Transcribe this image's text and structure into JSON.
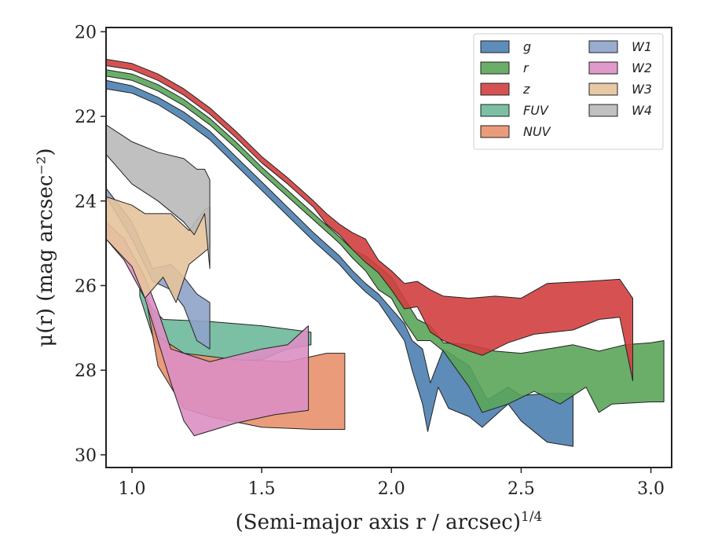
{
  "chart_data": {
    "type": "area",
    "xlabel": "(Semi-major axis r / arcsec)",
    "xlabel_sup": "1/4",
    "ylabel": "μ(r) (mag arcsec⁻²)",
    "xlim": [
      0.9,
      3.08
    ],
    "ylim": [
      30.3,
      19.9
    ],
    "y_inverted": true,
    "xticks": [
      1.0,
      1.5,
      2.0,
      2.5,
      3.0
    ],
    "xtick_labels": [
      "1.0",
      "1.5",
      "2.0",
      "2.5",
      "3.0"
    ],
    "yticks": [
      20,
      22,
      24,
      26,
      28,
      30
    ],
    "ytick_labels": [
      "20",
      "22",
      "24",
      "26",
      "28",
      "30"
    ],
    "grid": false,
    "legend_position": "top-right",
    "legend_columns": 2,
    "series": [
      {
        "name": "g",
        "color": "#4c7fb0",
        "upper": [
          [
            0.9,
            21.15
          ],
          [
            1.0,
            21.28
          ],
          [
            1.1,
            21.55
          ],
          [
            1.2,
            21.9
          ],
          [
            1.3,
            22.35
          ],
          [
            1.4,
            22.95
          ],
          [
            1.5,
            23.55
          ],
          [
            1.6,
            24.15
          ],
          [
            1.7,
            24.75
          ],
          [
            1.8,
            25.3
          ],
          [
            1.85,
            25.65
          ],
          [
            1.9,
            25.95
          ],
          [
            1.95,
            26.2
          ],
          [
            2.0,
            26.55
          ],
          [
            2.05,
            26.9
          ],
          [
            2.08,
            27.3
          ],
          [
            2.12,
            27.5
          ],
          [
            2.15,
            28.3
          ],
          [
            2.2,
            27.5
          ],
          [
            2.3,
            27.9
          ],
          [
            2.37,
            28.7
          ],
          [
            2.45,
            28.4
          ],
          [
            2.5,
            28.6
          ],
          [
            2.6,
            28.55
          ],
          [
            2.7,
            28.55
          ]
        ],
        "lower": [
          [
            0.9,
            21.35
          ],
          [
            1.0,
            21.45
          ],
          [
            1.1,
            21.72
          ],
          [
            1.2,
            22.1
          ],
          [
            1.3,
            22.55
          ],
          [
            1.4,
            23.15
          ],
          [
            1.5,
            23.75
          ],
          [
            1.6,
            24.35
          ],
          [
            1.7,
            24.95
          ],
          [
            1.8,
            25.5
          ],
          [
            1.85,
            25.85
          ],
          [
            1.9,
            26.15
          ],
          [
            1.95,
            26.4
          ],
          [
            2.0,
            26.85
          ],
          [
            2.05,
            27.3
          ],
          [
            2.08,
            28.0
          ],
          [
            2.12,
            28.8
          ],
          [
            2.14,
            29.45
          ],
          [
            2.18,
            28.4
          ],
          [
            2.22,
            28.9
          ],
          [
            2.3,
            29.1
          ],
          [
            2.35,
            29.35
          ],
          [
            2.45,
            28.8
          ],
          [
            2.5,
            29.2
          ],
          [
            2.6,
            29.7
          ],
          [
            2.7,
            29.8
          ]
        ]
      },
      {
        "name": "r",
        "color": "#5aa55a",
        "upper": [
          [
            0.9,
            20.9
          ],
          [
            1.0,
            21.0
          ],
          [
            1.1,
            21.25
          ],
          [
            1.2,
            21.6
          ],
          [
            1.3,
            22.05
          ],
          [
            1.4,
            22.6
          ],
          [
            1.5,
            23.2
          ],
          [
            1.6,
            23.75
          ],
          [
            1.7,
            24.3
          ],
          [
            1.8,
            24.85
          ],
          [
            1.85,
            25.15
          ],
          [
            1.9,
            25.3
          ],
          [
            1.95,
            25.55
          ],
          [
            2.0,
            25.8
          ],
          [
            2.05,
            26.3
          ],
          [
            2.1,
            26.8
          ],
          [
            2.15,
            26.95
          ],
          [
            2.2,
            27.35
          ],
          [
            2.3,
            27.4
          ],
          [
            2.4,
            27.55
          ],
          [
            2.5,
            27.6
          ],
          [
            2.6,
            27.5
          ],
          [
            2.7,
            27.4
          ],
          [
            2.8,
            27.55
          ],
          [
            2.9,
            27.4
          ],
          [
            3.0,
            27.35
          ],
          [
            3.05,
            27.3
          ]
        ],
        "lower": [
          [
            0.9,
            21.05
          ],
          [
            1.0,
            21.15
          ],
          [
            1.1,
            21.4
          ],
          [
            1.2,
            21.75
          ],
          [
            1.3,
            22.2
          ],
          [
            1.4,
            22.75
          ],
          [
            1.5,
            23.35
          ],
          [
            1.6,
            23.9
          ],
          [
            1.7,
            24.45
          ],
          [
            1.8,
            25.0
          ],
          [
            1.85,
            25.35
          ],
          [
            1.9,
            25.65
          ],
          [
            1.95,
            26.1
          ],
          [
            2.0,
            26.3
          ],
          [
            2.05,
            26.85
          ],
          [
            2.1,
            27.3
          ],
          [
            2.15,
            27.3
          ],
          [
            2.2,
            27.55
          ],
          [
            2.3,
            28.4
          ],
          [
            2.35,
            29.0
          ],
          [
            2.45,
            28.8
          ],
          [
            2.55,
            28.5
          ],
          [
            2.65,
            28.8
          ],
          [
            2.75,
            28.4
          ],
          [
            2.8,
            29.0
          ],
          [
            2.85,
            28.8
          ],
          [
            3.0,
            28.75
          ],
          [
            3.05,
            28.75
          ]
        ]
      },
      {
        "name": "z",
        "color": "#d13f3f",
        "upper": [
          [
            0.9,
            20.65
          ],
          [
            1.0,
            20.75
          ],
          [
            1.1,
            21.0
          ],
          [
            1.2,
            21.35
          ],
          [
            1.3,
            21.8
          ],
          [
            1.4,
            22.35
          ],
          [
            1.5,
            22.95
          ],
          [
            1.6,
            23.45
          ],
          [
            1.7,
            24.0
          ],
          [
            1.75,
            24.3
          ],
          [
            1.8,
            24.55
          ],
          [
            1.85,
            24.75
          ],
          [
            1.9,
            24.9
          ],
          [
            1.95,
            25.4
          ],
          [
            2.0,
            25.65
          ],
          [
            2.05,
            25.95
          ],
          [
            2.1,
            25.9
          ],
          [
            2.15,
            26.1
          ],
          [
            2.2,
            26.25
          ],
          [
            2.3,
            26.3
          ],
          [
            2.4,
            26.25
          ],
          [
            2.5,
            26.3
          ],
          [
            2.6,
            25.95
          ],
          [
            2.75,
            25.9
          ],
          [
            2.88,
            25.85
          ],
          [
            2.93,
            26.3
          ]
        ],
        "lower": [
          [
            0.9,
            20.8
          ],
          [
            1.0,
            20.9
          ],
          [
            1.1,
            21.15
          ],
          [
            1.2,
            21.5
          ],
          [
            1.3,
            21.95
          ],
          [
            1.4,
            22.5
          ],
          [
            1.5,
            23.1
          ],
          [
            1.6,
            23.6
          ],
          [
            1.7,
            24.15
          ],
          [
            1.75,
            24.55
          ],
          [
            1.8,
            24.8
          ],
          [
            1.85,
            25.15
          ],
          [
            1.9,
            25.45
          ],
          [
            1.95,
            25.7
          ],
          [
            2.0,
            26.1
          ],
          [
            2.05,
            26.55
          ],
          [
            2.1,
            26.5
          ],
          [
            2.15,
            27.1
          ],
          [
            2.2,
            27.3
          ],
          [
            2.3,
            27.55
          ],
          [
            2.35,
            27.65
          ],
          [
            2.45,
            27.35
          ],
          [
            2.55,
            27.15
          ],
          [
            2.7,
            27.05
          ],
          [
            2.8,
            26.8
          ],
          [
            2.88,
            26.75
          ],
          [
            2.93,
            28.25
          ]
        ]
      },
      {
        "name": "FUV",
        "color": "#6db89b",
        "upper": [
          [
            1.03,
            26.05
          ],
          [
            1.08,
            26.55
          ],
          [
            1.12,
            26.8
          ],
          [
            1.3,
            26.85
          ],
          [
            1.5,
            26.95
          ],
          [
            1.69,
            27.1
          ]
        ],
        "lower": [
          [
            1.03,
            26.25
          ],
          [
            1.08,
            27.2
          ],
          [
            1.12,
            27.6
          ],
          [
            1.3,
            27.8
          ],
          [
            1.5,
            27.75
          ],
          [
            1.6,
            27.5
          ],
          [
            1.69,
            27.4
          ]
        ]
      },
      {
        "name": "NUV",
        "color": "#e8916b",
        "upper": [
          [
            1.06,
            26.3
          ],
          [
            1.1,
            27.2
          ],
          [
            1.2,
            27.6
          ],
          [
            1.4,
            27.75
          ],
          [
            1.6,
            27.8
          ],
          [
            1.75,
            27.6
          ],
          [
            1.82,
            27.6
          ]
        ],
        "lower": [
          [
            1.06,
            26.5
          ],
          [
            1.1,
            27.9
          ],
          [
            1.2,
            28.9
          ],
          [
            1.3,
            29.1
          ],
          [
            1.5,
            29.35
          ],
          [
            1.7,
            29.4
          ],
          [
            1.82,
            29.4
          ]
        ]
      },
      {
        "name": "W1",
        "color": "#8fa3c9",
        "upper": [
          [
            0.9,
            23.7
          ],
          [
            1.0,
            24.5
          ],
          [
            1.08,
            25.6
          ],
          [
            1.15,
            25.5
          ],
          [
            1.2,
            25.8
          ],
          [
            1.25,
            26.2
          ],
          [
            1.3,
            26.4
          ]
        ],
        "lower": [
          [
            0.9,
            23.9
          ],
          [
            1.0,
            24.9
          ],
          [
            1.08,
            25.9
          ],
          [
            1.15,
            26.1
          ],
          [
            1.2,
            26.5
          ],
          [
            1.25,
            27.3
          ],
          [
            1.3,
            27.5
          ]
        ]
      },
      {
        "name": "W2",
        "color": "#dd8fc4",
        "upper": [
          [
            0.9,
            24.5
          ],
          [
            0.97,
            24.9
          ],
          [
            1.05,
            25.8
          ],
          [
            1.1,
            26.6
          ],
          [
            1.15,
            27.5
          ],
          [
            1.2,
            27.6
          ],
          [
            1.3,
            27.8
          ],
          [
            1.5,
            27.5
          ],
          [
            1.6,
            27.4
          ],
          [
            1.68,
            26.95
          ]
        ],
        "lower": [
          [
            0.9,
            24.9
          ],
          [
            0.97,
            25.4
          ],
          [
            1.05,
            26.3
          ],
          [
            1.1,
            27.3
          ],
          [
            1.15,
            28.3
          ],
          [
            1.2,
            29.2
          ],
          [
            1.24,
            29.55
          ],
          [
            1.4,
            29.25
          ],
          [
            1.55,
            29.05
          ],
          [
            1.68,
            28.95
          ]
        ]
      },
      {
        "name": "W3",
        "color": "#e5c39b",
        "upper": [
          [
            0.9,
            23.9
          ],
          [
            1.0,
            24.1
          ],
          [
            1.05,
            24.3
          ],
          [
            1.15,
            24.3
          ],
          [
            1.22,
            24.7
          ],
          [
            1.28,
            24.2
          ],
          [
            1.3,
            24.15
          ]
        ],
        "lower": [
          [
            0.9,
            24.9
          ],
          [
            1.0,
            25.55
          ],
          [
            1.05,
            26.3
          ],
          [
            1.12,
            25.8
          ],
          [
            1.17,
            26.4
          ],
          [
            1.22,
            25.5
          ],
          [
            1.28,
            25.2
          ],
          [
            1.3,
            25.1
          ]
        ]
      },
      {
        "name": "W4",
        "color": "#b9b9b9",
        "upper": [
          [
            0.9,
            22.2
          ],
          [
            1.0,
            22.6
          ],
          [
            1.1,
            22.85
          ],
          [
            1.2,
            23.0
          ],
          [
            1.25,
            23.25
          ],
          [
            1.28,
            23.25
          ],
          [
            1.3,
            23.5
          ]
        ],
        "lower": [
          [
            0.9,
            22.9
          ],
          [
            1.0,
            23.6
          ],
          [
            1.1,
            24.0
          ],
          [
            1.2,
            24.5
          ],
          [
            1.24,
            24.8
          ],
          [
            1.28,
            24.3
          ],
          [
            1.3,
            25.6
          ]
        ]
      }
    ]
  }
}
